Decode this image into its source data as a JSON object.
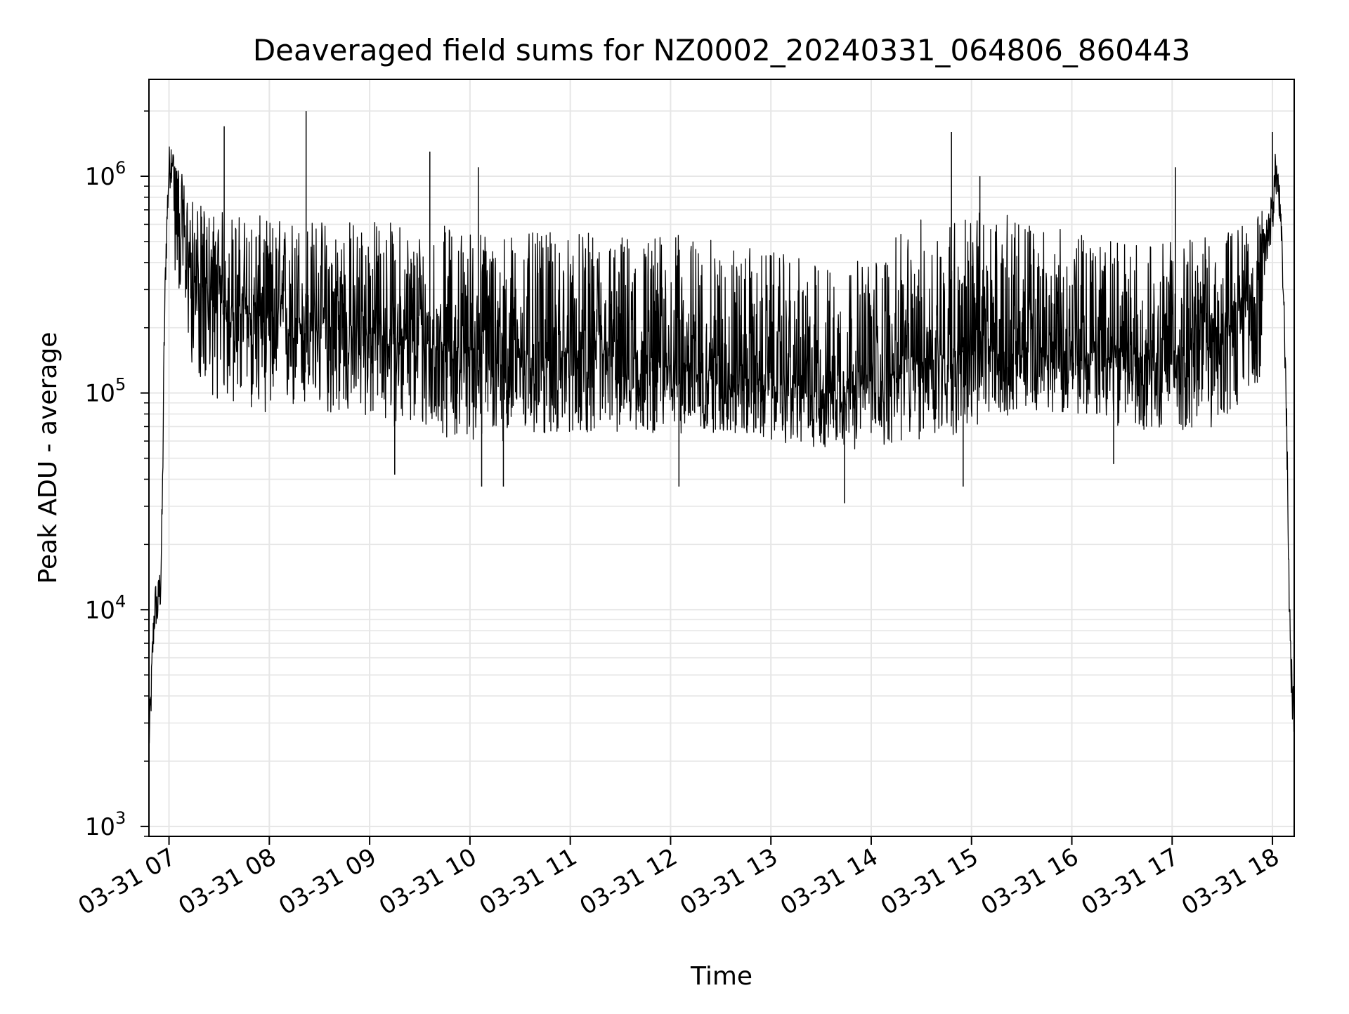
{
  "chart_data": {
    "type": "line",
    "title": "Deaveraged field sums for NZ0002_20240331_064806_860443",
    "xlabel": "Time",
    "ylabel": "Peak ADU - average",
    "y_scale": "log",
    "ylim": [
      900,
      2800000
    ],
    "xlim": [
      "2024-03-31 06:48",
      "2024-03-31 18:13"
    ],
    "x_ticks": [
      {
        "time": "2024-03-31 07:00",
        "label": "03-31 07"
      },
      {
        "time": "2024-03-31 08:00",
        "label": "03-31 08"
      },
      {
        "time": "2024-03-31 09:00",
        "label": "03-31 09"
      },
      {
        "time": "2024-03-31 10:00",
        "label": "03-31 10"
      },
      {
        "time": "2024-03-31 11:00",
        "label": "03-31 11"
      },
      {
        "time": "2024-03-31 12:00",
        "label": "03-31 12"
      },
      {
        "time": "2024-03-31 13:00",
        "label": "03-31 13"
      },
      {
        "time": "2024-03-31 14:00",
        "label": "03-31 14"
      },
      {
        "time": "2024-03-31 15:00",
        "label": "03-31 15"
      },
      {
        "time": "2024-03-31 16:00",
        "label": "03-31 16"
      },
      {
        "time": "2024-03-31 17:00",
        "label": "03-31 17"
      },
      {
        "time": "2024-03-31 18:00",
        "label": "03-31 18"
      }
    ],
    "y_ticks": [
      {
        "value": 1000,
        "base": "10",
        "exp": "3"
      },
      {
        "value": 10000,
        "base": "10",
        "exp": "4"
      },
      {
        "value": 100000,
        "base": "10",
        "exp": "5"
      },
      {
        "value": 1000000,
        "base": "10",
        "exp": "6"
      }
    ],
    "grid": true,
    "grid_minor": true,
    "line_color": "#000000",
    "grid_color": "#e6e6e6",
    "series": [
      {
        "color": "#000000",
        "x": [
          "2024-03-31 06:48",
          "2024-03-31 06:49",
          "2024-03-31 06:50",
          "2024-03-31 06:51",
          "2024-03-31 06:52",
          "2024-03-31 06:53",
          "2024-03-31 06:54",
          "2024-03-31 06:55",
          "2024-03-31 06:56",
          "2024-03-31 06:57",
          "2024-03-31 06:58",
          "2024-03-31 06:59",
          "2024-03-31 07:00",
          "2024-03-31 07:02",
          "2024-03-31 07:04",
          "2024-03-31 07:06",
          "2024-03-31 07:08",
          "2024-03-31 07:10",
          "2024-03-31 07:15",
          "2024-03-31 07:20",
          "2024-03-31 07:30",
          "2024-03-31 07:40",
          "2024-03-31 07:50",
          "2024-03-31 08:00",
          "2024-03-31 08:15",
          "2024-03-31 08:30",
          "2024-03-31 08:45",
          "2024-03-31 09:00",
          "2024-03-31 09:30",
          "2024-03-31 10:00",
          "2024-03-31 10:30",
          "2024-03-31 11:00",
          "2024-03-31 11:30",
          "2024-03-31 12:00",
          "2024-03-31 12:30",
          "2024-03-31 13:00",
          "2024-03-31 13:30",
          "2024-03-31 14:00",
          "2024-03-31 14:30",
          "2024-03-31 15:00",
          "2024-03-31 15:30",
          "2024-03-31 16:00",
          "2024-03-31 16:30",
          "2024-03-31 17:00",
          "2024-03-31 17:30",
          "2024-03-31 17:50",
          "2024-03-31 17:55",
          "2024-03-31 18:00",
          "2024-03-31 18:02",
          "2024-03-31 18:04",
          "2024-03-31 18:06",
          "2024-03-31 18:08",
          "2024-03-31 18:09",
          "2024-03-31 18:10",
          "2024-03-31 18:11",
          "2024-03-31 18:12",
          "2024-03-31 18:13"
        ],
        "y": [
          2500,
          3500,
          6000,
          9000,
          11000,
          10000,
          12000,
          13000,
          30000,
          150000,
          400000,
          700000,
          1100000,
          1300000,
          1000000,
          800000,
          600000,
          450000,
          350000,
          300000,
          270000,
          240000,
          230000,
          220000,
          210000,
          205000,
          200000,
          190000,
          170000,
          160000,
          150000,
          145000,
          140000,
          135000,
          125000,
          110000,
          105000,
          110000,
          140000,
          160000,
          150000,
          150000,
          145000,
          150000,
          190000,
          300000,
          450000,
          700000,
          1100000,
          800000,
          400000,
          120000,
          40000,
          12000,
          6000,
          4000,
          3000
        ],
        "band": {
          "x": [
            "2024-03-31 07:02",
            "2024-03-31 07:15",
            "2024-03-31 07:30",
            "2024-03-31 08:00",
            "2024-03-31 08:30",
            "2024-03-31 09:00",
            "2024-03-31 09:30",
            "2024-03-31 10:00",
            "2024-03-31 10:30",
            "2024-03-31 11:00",
            "2024-03-31 11:30",
            "2024-03-31 12:00",
            "2024-03-31 12:30",
            "2024-03-31 13:00",
            "2024-03-31 13:30",
            "2024-03-31 14:00",
            "2024-03-31 14:30",
            "2024-03-31 15:00",
            "2024-03-31 15:30",
            "2024-03-31 16:00",
            "2024-03-31 16:30",
            "2024-03-31 17:00",
            "2024-03-31 17:30",
            "2024-03-31 17:55"
          ],
          "low": [
            400000,
            120000,
            90000,
            80000,
            80000,
            75000,
            65000,
            60000,
            60000,
            65000,
            65000,
            65000,
            65000,
            60000,
            55000,
            55000,
            60000,
            65000,
            85000,
            80000,
            70000,
            65000,
            70000,
            120000
          ],
          "high": [
            1300000,
            750000,
            700000,
            650000,
            650000,
            650000,
            600000,
            600000,
            550000,
            550000,
            550000,
            550000,
            500000,
            450000,
            400000,
            420000,
            650000,
            700000,
            650000,
            550000,
            500000,
            500000,
            550000,
            700000
          ]
        },
        "spikes": [
          {
            "x": "2024-03-31 07:33",
            "y": 1700000
          },
          {
            "x": "2024-03-31 08:22",
            "y": 2000000
          },
          {
            "x": "2024-03-31 09:36",
            "y": 1300000
          },
          {
            "x": "2024-03-31 10:05",
            "y": 1100000
          },
          {
            "x": "2024-03-31 14:48",
            "y": 1600000
          },
          {
            "x": "2024-03-31 15:05",
            "y": 1000000
          },
          {
            "x": "2024-03-31 17:02",
            "y": 1100000
          },
          {
            "x": "2024-03-31 18:00",
            "y": 1600000
          },
          {
            "x": "2024-03-31 13:44",
            "y": 31000
          },
          {
            "x": "2024-03-31 10:07",
            "y": 37000
          },
          {
            "x": "2024-03-31 10:20",
            "y": 37000
          },
          {
            "x": "2024-03-31 12:05",
            "y": 37000
          },
          {
            "x": "2024-03-31 09:15",
            "y": 42000
          },
          {
            "x": "2024-03-31 14:55",
            "y": 37000
          },
          {
            "x": "2024-03-31 16:25",
            "y": 47000
          }
        ]
      }
    ]
  }
}
